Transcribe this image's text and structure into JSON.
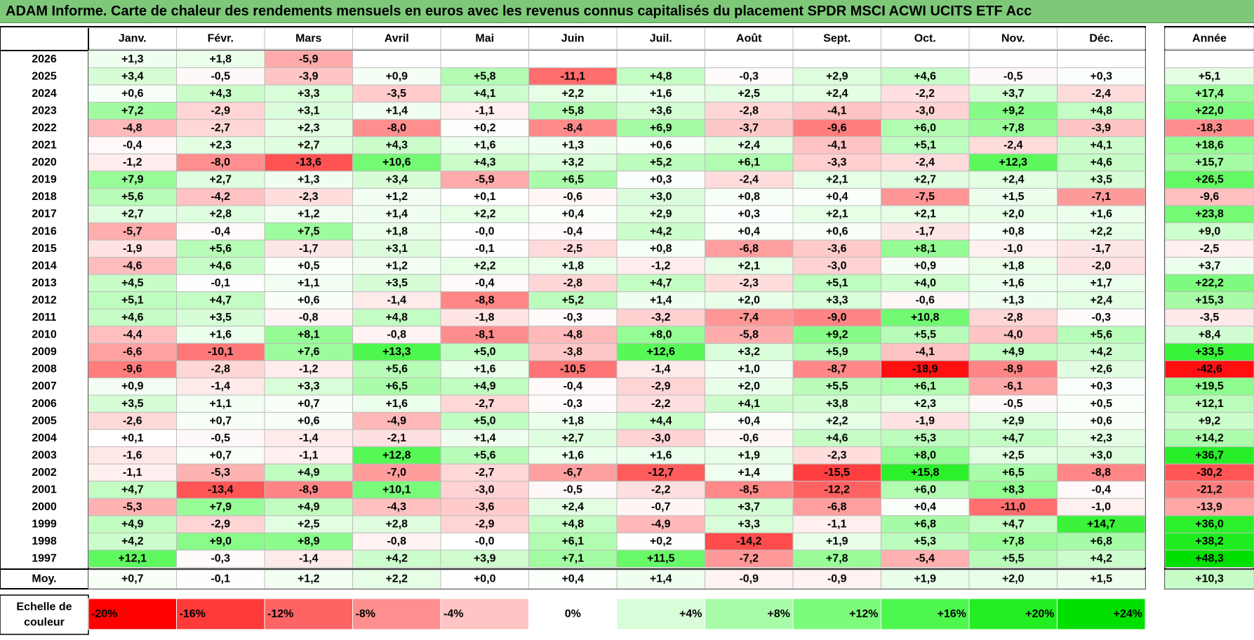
{
  "title": "ADAM Informe. Carte de chaleur des rendements mensuels en euros avec les revenus connus capitalisés du placement SPDR MSCI ACWI UCITS ETF Acc",
  "chart_data": {
    "type": "heatmap",
    "columns": [
      "Janv.",
      "Févr.",
      "Mars",
      "Avril",
      "Mai",
      "Juin",
      "Juil.",
      "Août",
      "Sept.",
      "Oct.",
      "Nov.",
      "Déc."
    ],
    "year_column_label": "Année",
    "rows": [
      {
        "label": "2026",
        "months": [
          "+1,3",
          "+1,8",
          "-5,9",
          "",
          "",
          "",
          "",
          "",
          "",
          "",
          "",
          ""
        ],
        "year": ""
      },
      {
        "label": "2025",
        "months": [
          "+3,4",
          "-0,5",
          "-3,9",
          "+0,9",
          "+5,8",
          "-11,1",
          "+4,8",
          "-0,3",
          "+2,9",
          "+4,6",
          "-0,5",
          "+0,3"
        ],
        "year": "+5,1"
      },
      {
        "label": "2024",
        "months": [
          "+0,6",
          "+4,3",
          "+3,3",
          "-3,5",
          "+4,1",
          "+2,2",
          "+1,6",
          "+2,5",
          "+2,4",
          "-2,2",
          "+3,7",
          "-2,4"
        ],
        "year": "+17,4"
      },
      {
        "label": "2023",
        "months": [
          "+7,2",
          "-2,9",
          "+3,1",
          "+1,4",
          "-1,1",
          "+5,8",
          "+3,6",
          "-2,8",
          "-4,1",
          "-3,0",
          "+9,2",
          "+4,8"
        ],
        "year": "+22,0"
      },
      {
        "label": "2022",
        "months": [
          "-4,8",
          "-2,7",
          "+2,3",
          "-8,0",
          "+0,2",
          "-8,4",
          "+6,9",
          "-3,7",
          "-9,6",
          "+6,0",
          "+7,8",
          "-3,9"
        ],
        "year": "-18,3"
      },
      {
        "label": "2021",
        "months": [
          "-0,4",
          "+2,3",
          "+2,7",
          "+4,3",
          "+1,6",
          "+1,3",
          "+0,6",
          "+2,4",
          "-4,1",
          "+5,1",
          "-2,4",
          "+4,1"
        ],
        "year": "+18,6"
      },
      {
        "label": "2020",
        "months": [
          "-1,2",
          "-8,0",
          "-13,6",
          "+10,6",
          "+4,3",
          "+3,2",
          "+5,2",
          "+6,1",
          "-3,3",
          "-2,4",
          "+12,3",
          "+4,6"
        ],
        "year": "+15,7"
      },
      {
        "label": "2019",
        "months": [
          "+7,9",
          "+2,7",
          "+1,3",
          "+3,4",
          "-5,9",
          "+6,5",
          "+0,3",
          "-2,4",
          "+2,1",
          "+2,7",
          "+2,4",
          "+3,5"
        ],
        "year": "+26,5"
      },
      {
        "label": "2018",
        "months": [
          "+5,6",
          "-4,2",
          "-2,3",
          "+1,2",
          "+0,1",
          "-0,6",
          "+3,0",
          "+0,8",
          "+0,4",
          "-7,5",
          "+1,5",
          "-7,1"
        ],
        "year": "-9,6"
      },
      {
        "label": "2017",
        "months": [
          "+2,7",
          "+2,8",
          "+1,2",
          "+1,4",
          "+2,2",
          "+0,4",
          "+2,9",
          "+0,3",
          "+2,1",
          "+2,1",
          "+2,0",
          "+1,6"
        ],
        "year": "+23,8"
      },
      {
        "label": "2016",
        "months": [
          "-5,7",
          "-0,4",
          "+7,5",
          "+1,8",
          "-0,0",
          "-0,4",
          "+4,2",
          "+0,4",
          "+0,6",
          "-1,7",
          "+0,8",
          "+2,2"
        ],
        "year": "+9,0"
      },
      {
        "label": "2015",
        "months": [
          "-1,9",
          "+5,6",
          "-1,7",
          "+3,1",
          "-0,1",
          "-2,5",
          "+0,8",
          "-6,8",
          "-3,6",
          "+8,1",
          "-1,0",
          "-1,7"
        ],
        "year": "-2,5"
      },
      {
        "label": "2014",
        "months": [
          "-4,6",
          "+4,6",
          "+0,5",
          "+1,2",
          "+2,2",
          "+1,8",
          "-1,2",
          "+2,1",
          "-3,0",
          "+0,9",
          "+1,8",
          "-2,0"
        ],
        "year": "+3,7"
      },
      {
        "label": "2013",
        "months": [
          "+4,5",
          "-0,1",
          "+1,1",
          "+3,5",
          "-0,4",
          "-2,8",
          "+4,7",
          "-2,3",
          "+5,1",
          "+4,0",
          "+1,6",
          "+1,7"
        ],
        "year": "+22,2"
      },
      {
        "label": "2012",
        "months": [
          "+5,1",
          "+4,7",
          "+0,6",
          "-1,4",
          "-8,8",
          "+5,2",
          "+1,4",
          "+2,0",
          "+3,3",
          "-0,6",
          "+1,3",
          "+2,4"
        ],
        "year": "+15,3"
      },
      {
        "label": "2011",
        "months": [
          "+4,6",
          "+3,5",
          "-0,8",
          "+4,8",
          "-1,8",
          "-0,3",
          "-3,2",
          "-7,4",
          "-9,0",
          "+10,8",
          "-2,8",
          "-0,3"
        ],
        "year": "-3,5"
      },
      {
        "label": "2010",
        "months": [
          "-4,4",
          "+1,6",
          "+8,1",
          "-0,8",
          "-8,1",
          "-4,8",
          "+8,0",
          "-5,8",
          "+9,2",
          "+5,5",
          "-4,0",
          "+5,6"
        ],
        "year": "+8,4"
      },
      {
        "label": "2009",
        "months": [
          "-6,6",
          "-10,1",
          "+7,6",
          "+13,3",
          "+5,0",
          "-3,8",
          "+12,6",
          "+3,2",
          "+5,9",
          "-4,1",
          "+4,9",
          "+4,2"
        ],
        "year": "+33,5"
      },
      {
        "label": "2008",
        "months": [
          "-9,6",
          "-2,8",
          "-1,2",
          "+5,6",
          "+1,6",
          "-10,5",
          "-1,4",
          "+1,0",
          "-8,7",
          "-18,9",
          "-8,9",
          "+2,6"
        ],
        "year": "-42,6"
      },
      {
        "label": "2007",
        "months": [
          "+0,9",
          "-1,4",
          "+3,3",
          "+6,5",
          "+4,9",
          "-0,4",
          "-2,9",
          "+2,0",
          "+5,5",
          "+6,1",
          "-6,1",
          "+0,3"
        ],
        "year": "+19,5"
      },
      {
        "label": "2006",
        "months": [
          "+3,5",
          "+1,1",
          "+0,7",
          "+1,6",
          "-2,7",
          "-0,3",
          "-2,2",
          "+4,1",
          "+3,8",
          "+2,3",
          "-0,5",
          "+0,5"
        ],
        "year": "+12,1"
      },
      {
        "label": "2005",
        "months": [
          "-2,6",
          "+0,7",
          "+0,6",
          "-4,9",
          "+5,0",
          "+1,8",
          "+4,4",
          "+0,4",
          "+2,2",
          "-1,9",
          "+2,9",
          "+0,6"
        ],
        "year": "+9,2"
      },
      {
        "label": "2004",
        "months": [
          "+0,1",
          "-0,5",
          "-1,4",
          "-2,1",
          "+1,4",
          "+2,7",
          "-3,0",
          "-0,6",
          "+4,6",
          "+5,3",
          "+4,7",
          "+2,3"
        ],
        "year": "+14,2"
      },
      {
        "label": "2003",
        "months": [
          "-1,6",
          "+0,7",
          "-1,1",
          "+12,8",
          "+5,6",
          "+1,6",
          "+1,6",
          "+1,9",
          "-2,3",
          "+8,0",
          "+2,5",
          "+3,0"
        ],
        "year": "+36,7"
      },
      {
        "label": "2002",
        "months": [
          "-1,1",
          "-5,3",
          "+4,9",
          "-7,0",
          "-2,7",
          "-6,7",
          "-12,7",
          "+1,4",
          "-15,5",
          "+15,8",
          "+6,5",
          "-8,8"
        ],
        "year": "-30,2"
      },
      {
        "label": "2001",
        "months": [
          "+4,7",
          "-13,4",
          "-8,9",
          "+10,1",
          "-3,0",
          "-0,5",
          "-2,2",
          "-8,5",
          "-12,2",
          "+6,0",
          "+8,3",
          "-0,4"
        ],
        "year": "-21,2"
      },
      {
        "label": "2000",
        "months": [
          "-5,3",
          "+7,9",
          "+4,9",
          "-4,3",
          "-3,6",
          "+2,4",
          "-0,7",
          "+3,7",
          "-6,8",
          "+0,4",
          "-11,0",
          "-1,0"
        ],
        "year": "-13,9"
      },
      {
        "label": "1999",
        "months": [
          "+4,9",
          "-2,9",
          "+2,5",
          "+2,8",
          "-2,9",
          "+4,8",
          "-4,9",
          "+3,3",
          "-1,1",
          "+6,8",
          "+4,7",
          "+14,7"
        ],
        "year": "+36,0"
      },
      {
        "label": "1998",
        "months": [
          "+4,2",
          "+9,0",
          "+8,9",
          "-0,8",
          "-0,0",
          "+6,1",
          "+0,2",
          "-14,2",
          "+1,9",
          "+5,3",
          "+7,8",
          "+6,8"
        ],
        "year": "+38,2"
      },
      {
        "label": "1997",
        "months": [
          "+12,1",
          "-0,3",
          "-1,4",
          "+4,2",
          "+3,9",
          "+7,1",
          "+11,5",
          "-7,2",
          "+7,8",
          "-5,4",
          "+5,5",
          "+4,2"
        ],
        "year": "+48,3"
      }
    ],
    "average": {
      "label": "Moy.",
      "months": [
        "+0,7",
        "-0,1",
        "+1,2",
        "+2,2",
        "+0,0",
        "+0,4",
        "+1,4",
        "-0,9",
        "-0,9",
        "+1,9",
        "+2,0",
        "+1,5"
      ],
      "year": "+10,3"
    },
    "scale": {
      "label_lines": [
        "Echelle de",
        "couleur"
      ],
      "entries": [
        {
          "label": "-20%",
          "color": "#ff0000"
        },
        {
          "label": "-16%",
          "color": "#ff3a3a"
        },
        {
          "label": "-12%",
          "color": "#ff6464"
        },
        {
          "label": "-8%",
          "color": "#ff8e8e"
        },
        {
          "label": "-4%",
          "color": "#ffc4c4"
        },
        {
          "label": "0%",
          "color": "#ffffff"
        },
        {
          "label": "+4%",
          "color": "#d8fdd8"
        },
        {
          "label": "+8%",
          "color": "#a8fca8"
        },
        {
          "label": "+12%",
          "color": "#7cfb7c"
        },
        {
          "label": "+16%",
          "color": "#4ef74e"
        },
        {
          "label": "+20%",
          "color": "#22ee22"
        },
        {
          "label": "+24%",
          "color": "#00e000"
        }
      ]
    },
    "colors": {
      "title_background": "#7ec87a",
      "negative_max": "#ff0000",
      "positive_max": "#00e000",
      "neutral": "#ffffff"
    }
  }
}
